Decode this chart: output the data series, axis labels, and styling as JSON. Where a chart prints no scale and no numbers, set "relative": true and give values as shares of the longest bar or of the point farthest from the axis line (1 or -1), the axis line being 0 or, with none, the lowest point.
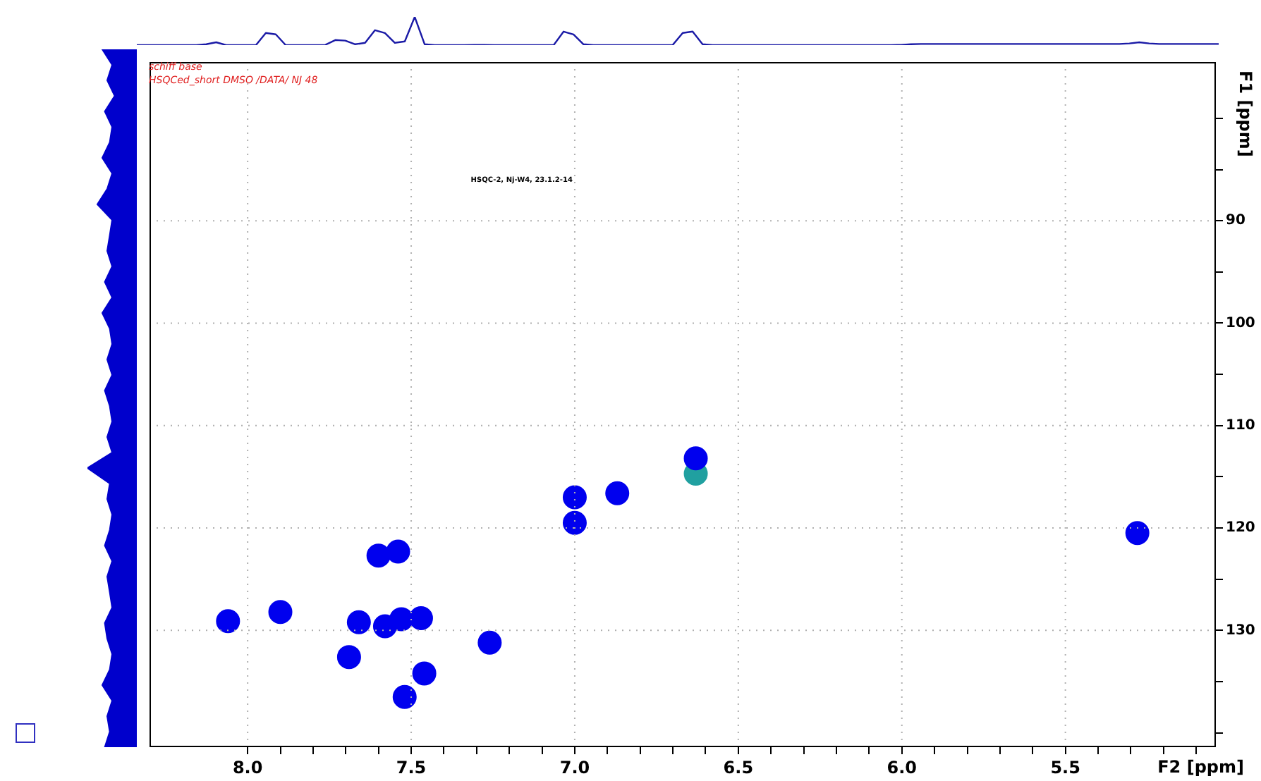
{
  "chart_data": [
    {
      "type": "line",
      "relative": true,
      "color": "#1a1aa6",
      "categories": [
        null,
        null,
        null,
        null,
        null,
        null,
        null,
        null,
        null,
        null,
        null,
        null,
        null,
        null,
        null,
        null,
        null,
        null,
        null,
        null,
        null,
        null,
        null,
        null,
        null,
        null,
        null,
        null,
        null,
        null,
        null,
        null,
        null,
        null,
        null,
        null,
        null,
        null,
        null,
        null,
        null,
        null,
        null,
        null,
        null,
        null,
        null,
        null,
        null,
        null,
        null,
        null,
        null,
        null,
        null,
        null,
        null,
        null,
        null,
        null,
        null,
        null,
        null,
        null,
        null,
        null,
        null,
        null,
        null,
        null,
        null,
        null,
        null,
        null,
        null,
        null,
        null,
        null,
        null,
        null,
        null,
        null,
        null,
        null,
        null,
        null,
        null,
        null,
        null,
        null,
        null,
        null,
        null,
        null,
        null,
        null,
        null,
        null,
        null,
        null,
        null,
        null,
        null,
        null,
        null,
        null,
        null,
        null,
        null,
        null
      ],
      "values": [
        0,
        0,
        0,
        0,
        0,
        0,
        0,
        0.03,
        0.1,
        0,
        0,
        0,
        0,
        0.43,
        0.38,
        0,
        0,
        0,
        0,
        0.01,
        0.18,
        0.16,
        0.03,
        0.08,
        0.53,
        0.43,
        0.08,
        0.13,
        1,
        0.03,
        0,
        0,
        0,
        0,
        0.01,
        0.01,
        0,
        0,
        0,
        0,
        0,
        0,
        0,
        0.48,
        0.38,
        0.03,
        0,
        0,
        0,
        0,
        0,
        0,
        0,
        0,
        0.01,
        0.43,
        0.48,
        0.03,
        0,
        0,
        0,
        0,
        0,
        0,
        0,
        0,
        0,
        0,
        0,
        0,
        0,
        0,
        0,
        0,
        0,
        0,
        0,
        0.01,
        0.03,
        0.04,
        0.04,
        0.04,
        0.04,
        0.04,
        0.04,
        0.04,
        0.04,
        0.04,
        0.04,
        0.04,
        0.04,
        0.04,
        0.04,
        0.04,
        0.04,
        0.04,
        0.04,
        0.04,
        0.04,
        0.04,
        0.06,
        0.1,
        0.06,
        0.04,
        0.04,
        0.04,
        0.04,
        0.04,
        0.04,
        0.04
      ]
    },
    {
      "type": "scatter",
      "xlabel": "F2 [ppm]",
      "ylabel": "F1 [ppm]",
      "xlim": [
        8.3,
        5.04
      ],
      "ylim": [
        141.4,
        74.5
      ],
      "marker": "circle",
      "grid": true,
      "xticks": [
        {
          "value": 8,
          "label": "8.0"
        },
        {
          "value": 7.9,
          "label": null
        },
        {
          "value": 7.8,
          "label": null
        },
        {
          "value": 7.7,
          "label": null
        },
        {
          "value": 7.6,
          "label": null
        },
        {
          "value": 7.5,
          "label": "7.5"
        },
        {
          "value": 7.4,
          "label": null
        },
        {
          "value": 7.3,
          "label": null
        },
        {
          "value": 7.2,
          "label": null
        },
        {
          "value": 7.1,
          "label": null
        },
        {
          "value": 7,
          "label": "7.0"
        },
        {
          "value": 6.9,
          "label": null
        },
        {
          "value": 6.8,
          "label": null
        },
        {
          "value": 6.7,
          "label": null
        },
        {
          "value": 6.6,
          "label": null
        },
        {
          "value": 6.5,
          "label": "6.5"
        },
        {
          "value": 6.4,
          "label": null
        },
        {
          "value": 6.3,
          "label": null
        },
        {
          "value": 6.2,
          "label": null
        },
        {
          "value": 6.1,
          "label": null
        },
        {
          "value": 6,
          "label": "6.0"
        },
        {
          "value": 5.9,
          "label": null
        },
        {
          "value": 5.8,
          "label": null
        },
        {
          "value": 5.7,
          "label": null
        },
        {
          "value": 5.6,
          "label": null
        },
        {
          "value": 5.5,
          "label": "5.5"
        },
        {
          "value": 5.4,
          "label": null
        },
        {
          "value": 5.3,
          "label": null
        },
        {
          "value": 5.2,
          "label": null
        },
        {
          "value": 5.1,
          "label": null
        }
      ],
      "yticks": [
        {
          "value": 80,
          "label": null
        },
        {
          "value": 85,
          "label": null
        },
        90,
        {
          "value": 95,
          "label": null
        },
        100,
        {
          "value": 105,
          "label": null
        },
        110,
        {
          "value": 115,
          "label": null
        },
        120,
        {
          "value": 125,
          "label": null
        },
        130,
        {
          "value": 135,
          "label": null
        },
        {
          "value": 140,
          "label": null
        }
      ],
      "annotations": [
        "schiff base",
        "HSQCed_short DMSO /DATA/ NJ 48",
        "HSQC-2, Nj-W4, 23.1.2-14"
      ],
      "series": [
        {
          "color": "#0000ee",
          "x": [
            8.06,
            7.9,
            7.6,
            7.54,
            7.66,
            7.58,
            7.47,
            7.53,
            7.69,
            7.46,
            7.52,
            7.26,
            6.63,
            7.0,
            7.0,
            6.87,
            5.28
          ],
          "values": [
            129.1,
            128.2,
            122.7,
            122.3,
            129.2,
            129.6,
            128.8,
            128.9,
            132.6,
            134.2,
            136.5,
            131.2,
            113.2,
            117.0,
            119.5,
            116.6,
            120.5
          ]
        },
        {
          "color": "#20a0a0",
          "x": [
            6.63
          ],
          "values": [
            114.7
          ]
        }
      ]
    }
  ]
}
